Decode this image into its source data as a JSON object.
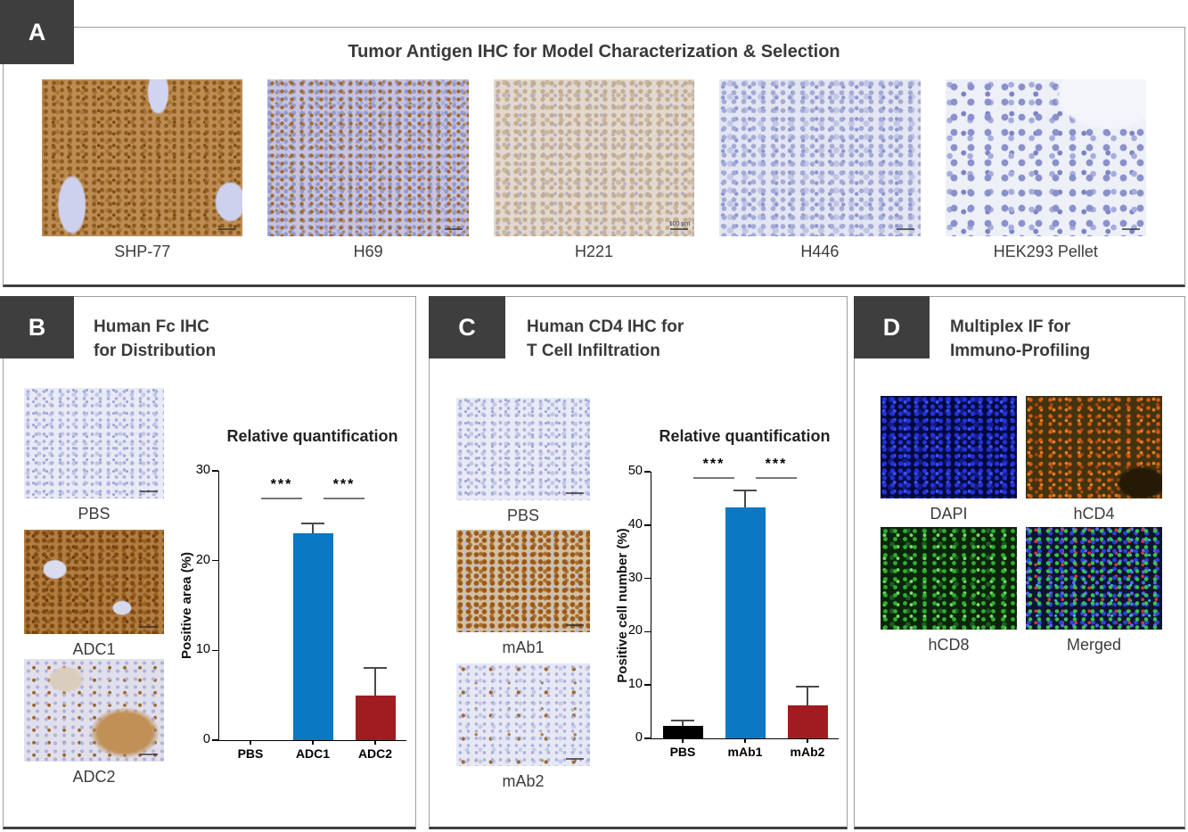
{
  "figure": {
    "background": "#ffffff",
    "panel_label_bg": "#3e3e3e",
    "panel_label_color": "#ffffff",
    "bar_blue": "#0b78c3",
    "bar_red": "#a11c20",
    "bar_black": "#000000"
  },
  "panels": {
    "a": {
      "label": "A",
      "title": "Tumor Antigen IHC for Model Characterization & Selection",
      "images": [
        {
          "name": "SHP-77",
          "texture": "shp77"
        },
        {
          "name": "H69",
          "texture": "h69"
        },
        {
          "name": "H221",
          "texture": "h221",
          "scale_bar": "100 µm"
        },
        {
          "name": "H446",
          "texture": "h446"
        },
        {
          "name": "HEK293 Pellet",
          "texture": "pellet"
        }
      ]
    },
    "b": {
      "label": "B",
      "title_line1": "Human Fc IHC",
      "title_line2": "for Distribution",
      "images": [
        {
          "name": "PBS",
          "texture": "fc-pbs"
        },
        {
          "name": "ADC1",
          "texture": "fc-adc1"
        },
        {
          "name": "ADC2",
          "texture": "fc-adc2"
        }
      ]
    },
    "c": {
      "label": "C",
      "title_line1": "Human CD4 IHC for",
      "title_line2": "T Cell Infiltration",
      "images": [
        {
          "name": "PBS",
          "texture": "cd4-pbs"
        },
        {
          "name": "mAb1",
          "texture": "cd4-mab1"
        },
        {
          "name": "mAb2",
          "texture": "cd4-mab2"
        }
      ]
    },
    "d": {
      "label": "D",
      "title_line1": "Multiplex IF for",
      "title_line2": "Immuno-Profiling",
      "images": [
        {
          "name": "DAPI",
          "texture": "if-dapi"
        },
        {
          "name": "hCD4",
          "texture": "if-hcd4"
        },
        {
          "name": "hCD8",
          "texture": "if-hcd8"
        },
        {
          "name": "Merged",
          "texture": "if-merged"
        }
      ]
    }
  },
  "chart_data": [
    {
      "type": "bar",
      "panel": "B",
      "title": "Relative quantification",
      "ylabel": "Positive area (%)",
      "categories": [
        "PBS",
        "ADC1",
        "ADC2"
      ],
      "values": [
        0,
        23,
        5
      ],
      "errors": [
        0,
        1.2,
        3.1
      ],
      "bar_colors": [
        "#000000",
        "#0b78c3",
        "#a11c20"
      ],
      "ylim": [
        0,
        30
      ],
      "yticks": [
        0,
        10,
        20,
        30
      ],
      "grid": false,
      "significance": [
        {
          "pair": [
            0,
            1
          ],
          "label": "***"
        },
        {
          "pair": [
            1,
            2
          ],
          "label": "***"
        }
      ],
      "sig_y": 27
    },
    {
      "type": "bar",
      "panel": "C",
      "title": "Relative quantification",
      "ylabel": "Positive cell number (%)",
      "categories": [
        "PBS",
        "mAb1",
        "mAb2"
      ],
      "values": [
        2.3,
        43.3,
        6.2
      ],
      "errors": [
        1.2,
        3.3,
        3.6
      ],
      "bar_colors": [
        "#000000",
        "#0b78c3",
        "#a11c20"
      ],
      "ylim": [
        0,
        50
      ],
      "yticks": [
        0,
        10,
        20,
        30,
        40,
        50
      ],
      "grid": false,
      "significance": [
        {
          "pair": [
            0,
            1
          ],
          "label": "***"
        },
        {
          "pair": [
            1,
            2
          ],
          "label": "***"
        }
      ],
      "sig_y": 49
    }
  ]
}
